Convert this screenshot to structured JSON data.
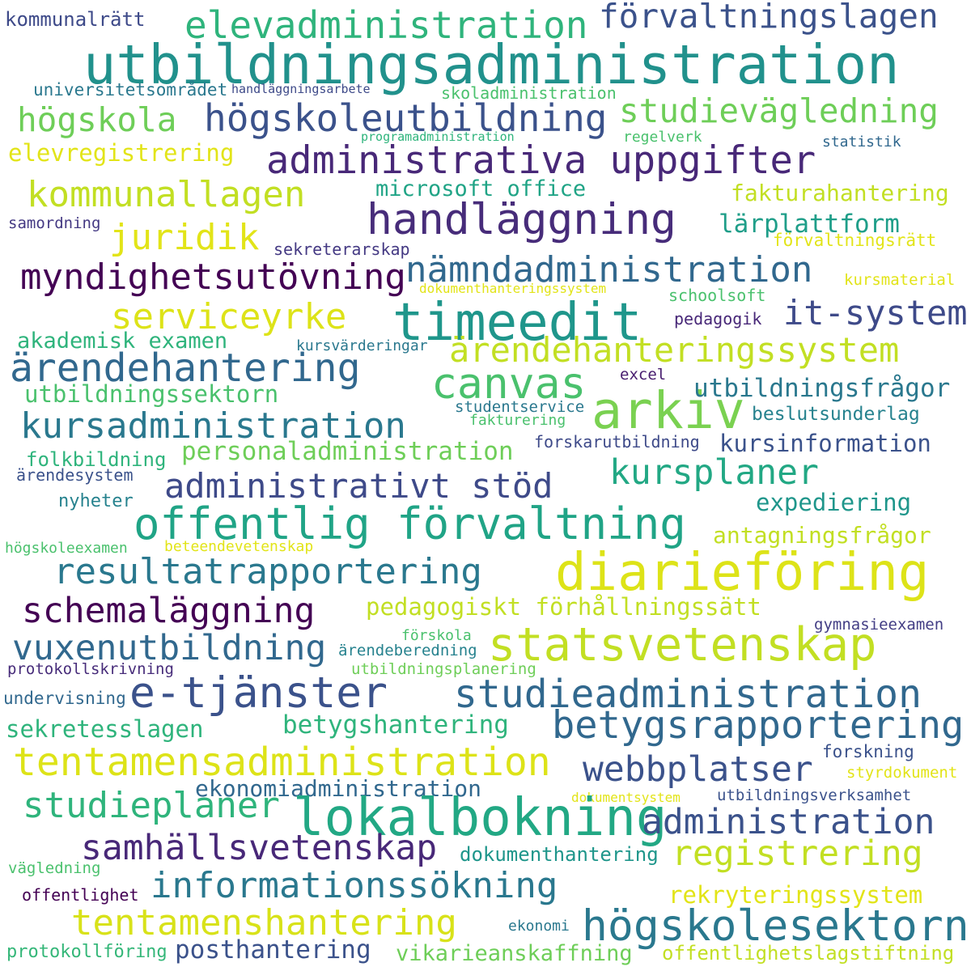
{
  "words": [
    {
      "text": "utbildningsadministration",
      "color": "#21918c"
    },
    {
      "text": "elevadministration",
      "color": "#2fb47c"
    },
    {
      "text": "förvaltningslagen",
      "color": "#3b528b"
    },
    {
      "text": "kommunalrätt",
      "color": "#3e4a89"
    },
    {
      "text": "universitetsområdet",
      "color": "#2a788e"
    },
    {
      "text": "handläggningsarbete",
      "color": "#3e4a89"
    },
    {
      "text": "skoladministration",
      "color": "#4ac16d"
    },
    {
      "text": "högskola",
      "color": "#6ece58"
    },
    {
      "text": "högskoleutbildning",
      "color": "#3b528b"
    },
    {
      "text": "studievägledning",
      "color": "#6ece58"
    },
    {
      "text": "programadministration",
      "color": "#2fb47c"
    },
    {
      "text": "regelverk",
      "color": "#4ac16d"
    },
    {
      "text": "statistik",
      "color": "#31688e"
    },
    {
      "text": "elevregistrering",
      "color": "#e2e418"
    },
    {
      "text": "administrativa uppgifter",
      "color": "#482878"
    },
    {
      "text": "kommunallagen",
      "color": "#c2df23"
    },
    {
      "text": "microsoft office",
      "color": "#20a486"
    },
    {
      "text": "fakturahantering",
      "color": "#c2df23"
    },
    {
      "text": "handläggning",
      "color": "#472c7a"
    },
    {
      "text": "samordning",
      "color": "#443983"
    },
    {
      "text": "juridik",
      "color": "#e2e418"
    },
    {
      "text": "lärplattform",
      "color": "#1f9e89"
    },
    {
      "text": "sekreterarskap",
      "color": "#443983"
    },
    {
      "text": "förvaltningsrätt",
      "color": "#e2e418"
    },
    {
      "text": "myndighetsutövning",
      "color": "#440154"
    },
    {
      "text": "nämndadministration",
      "color": "#31688e"
    },
    {
      "text": "kursmaterial",
      "color": "#e2e418"
    },
    {
      "text": "dokumenthanteringssystem",
      "color": "#e2e418"
    },
    {
      "text": "schoolsoft",
      "color": "#4ac16d"
    },
    {
      "text": "serviceyrke",
      "color": "#dde318"
    },
    {
      "text": "timeedit",
      "color": "#1f968b"
    },
    {
      "text": "it-system",
      "color": "#3e4a89"
    },
    {
      "text": "pedagogik",
      "color": "#482878"
    },
    {
      "text": "akademisk examen",
      "color": "#2fb47c"
    },
    {
      "text": "kursvärderingar",
      "color": "#2a788e"
    },
    {
      "text": "ärendehanteringssystem",
      "color": "#c2df23"
    },
    {
      "text": "ärendehantering",
      "color": "#31688e"
    },
    {
      "text": "canvas",
      "color": "#4ac16d"
    },
    {
      "text": "excel",
      "color": "#481d6f"
    },
    {
      "text": "utbildningssektorn",
      "color": "#4ac16d"
    },
    {
      "text": "arkiv",
      "color": "#7ad151"
    },
    {
      "text": "utbildningsfrågor",
      "color": "#2a788e"
    },
    {
      "text": "studentservice",
      "color": "#2a788e"
    },
    {
      "text": "kursadministration",
      "color": "#2a788e"
    },
    {
      "text": "fakturering",
      "color": "#4ac16d"
    },
    {
      "text": "beslutsunderlag",
      "color": "#26828e"
    },
    {
      "text": "personaladministration",
      "color": "#6ece58"
    },
    {
      "text": "forskarutbildning",
      "color": "#3e4a89"
    },
    {
      "text": "kursinformation",
      "color": "#3b528b"
    },
    {
      "text": "folkbildning",
      "color": "#2fb47c"
    },
    {
      "text": "ärendesystem",
      "color": "#3b528b"
    },
    {
      "text": "kursplaner",
      "color": "#22a884"
    },
    {
      "text": "administrativt stöd",
      "color": "#3e4a89"
    },
    {
      "text": "nyheter",
      "color": "#26828e"
    },
    {
      "text": "expediering",
      "color": "#1f968b"
    },
    {
      "text": "offentlig förvaltning",
      "color": "#20a486"
    },
    {
      "text": "högskoleexamen",
      "color": "#4ac16d"
    },
    {
      "text": "beteendevetenskap",
      "color": "#e2e418"
    },
    {
      "text": "antagningsfrågor",
      "color": "#c2df23"
    },
    {
      "text": "resultatrapportering",
      "color": "#2a788e"
    },
    {
      "text": "diarieföring",
      "color": "#dde318"
    },
    {
      "text": "schemaläggning",
      "color": "#440154"
    },
    {
      "text": "pedagogiskt förhållningssätt",
      "color": "#c2df23"
    },
    {
      "text": "förskola",
      "color": "#4ac16d"
    },
    {
      "text": "gymnasieexamen",
      "color": "#433e85"
    },
    {
      "text": "vuxenutbildning",
      "color": "#31688e"
    },
    {
      "text": "ärendeberedning",
      "color": "#26828e"
    },
    {
      "text": "statsvetenskap",
      "color": "#c2df23"
    },
    {
      "text": "protokollskrivning",
      "color": "#472c7a"
    },
    {
      "text": "utbildningsplanering",
      "color": "#6ece58"
    },
    {
      "text": "undervisning",
      "color": "#31688e"
    },
    {
      "text": "e-tjänster",
      "color": "#3b528b"
    },
    {
      "text": "studieadministration",
      "color": "#31688e"
    },
    {
      "text": "sekretesslagen",
      "color": "#2fb47c"
    },
    {
      "text": "betygshantering",
      "color": "#2fb47c"
    },
    {
      "text": "betygsrapportering",
      "color": "#31688e"
    },
    {
      "text": "tentamensadministration",
      "color": "#dde318"
    },
    {
      "text": "forskning",
      "color": "#3b528b"
    },
    {
      "text": "webbplatser",
      "color": "#3b528b"
    },
    {
      "text": "ekonomiadministration",
      "color": "#31688e"
    },
    {
      "text": "styrdokument",
      "color": "#e2e418"
    },
    {
      "text": "dokumentsystem",
      "color": "#e2e418"
    },
    {
      "text": "utbildningsverksamhet",
      "color": "#3b528b"
    },
    {
      "text": "studieplaner",
      "color": "#2fb47c"
    },
    {
      "text": "lokalbokning",
      "color": "#22a884"
    },
    {
      "text": "administration",
      "color": "#3b528b"
    },
    {
      "text": "samhällsvetenskap",
      "color": "#482878"
    },
    {
      "text": "dokumenthantering",
      "color": "#1f968b"
    },
    {
      "text": "registrering",
      "color": "#c2df23"
    },
    {
      "text": "vägledning",
      "color": "#4ac16d"
    },
    {
      "text": "informationssökning",
      "color": "#2a788e"
    },
    {
      "text": "rekryteringssystem",
      "color": "#e2e418"
    },
    {
      "text": "offentlighet",
      "color": "#440154"
    },
    {
      "text": "tentamenshantering",
      "color": "#d8e219"
    },
    {
      "text": "högskolesektorn",
      "color": "#2a788e"
    },
    {
      "text": "ekonomi",
      "color": "#2a788e"
    },
    {
      "text": "protokollföring",
      "color": "#35b779"
    },
    {
      "text": "posthantering",
      "color": "#3b528b"
    },
    {
      "text": "vikarieanskaffning",
      "color": "#6ece58"
    },
    {
      "text": "offentlighetslagstiftning",
      "color": "#c2df23"
    }
  ]
}
